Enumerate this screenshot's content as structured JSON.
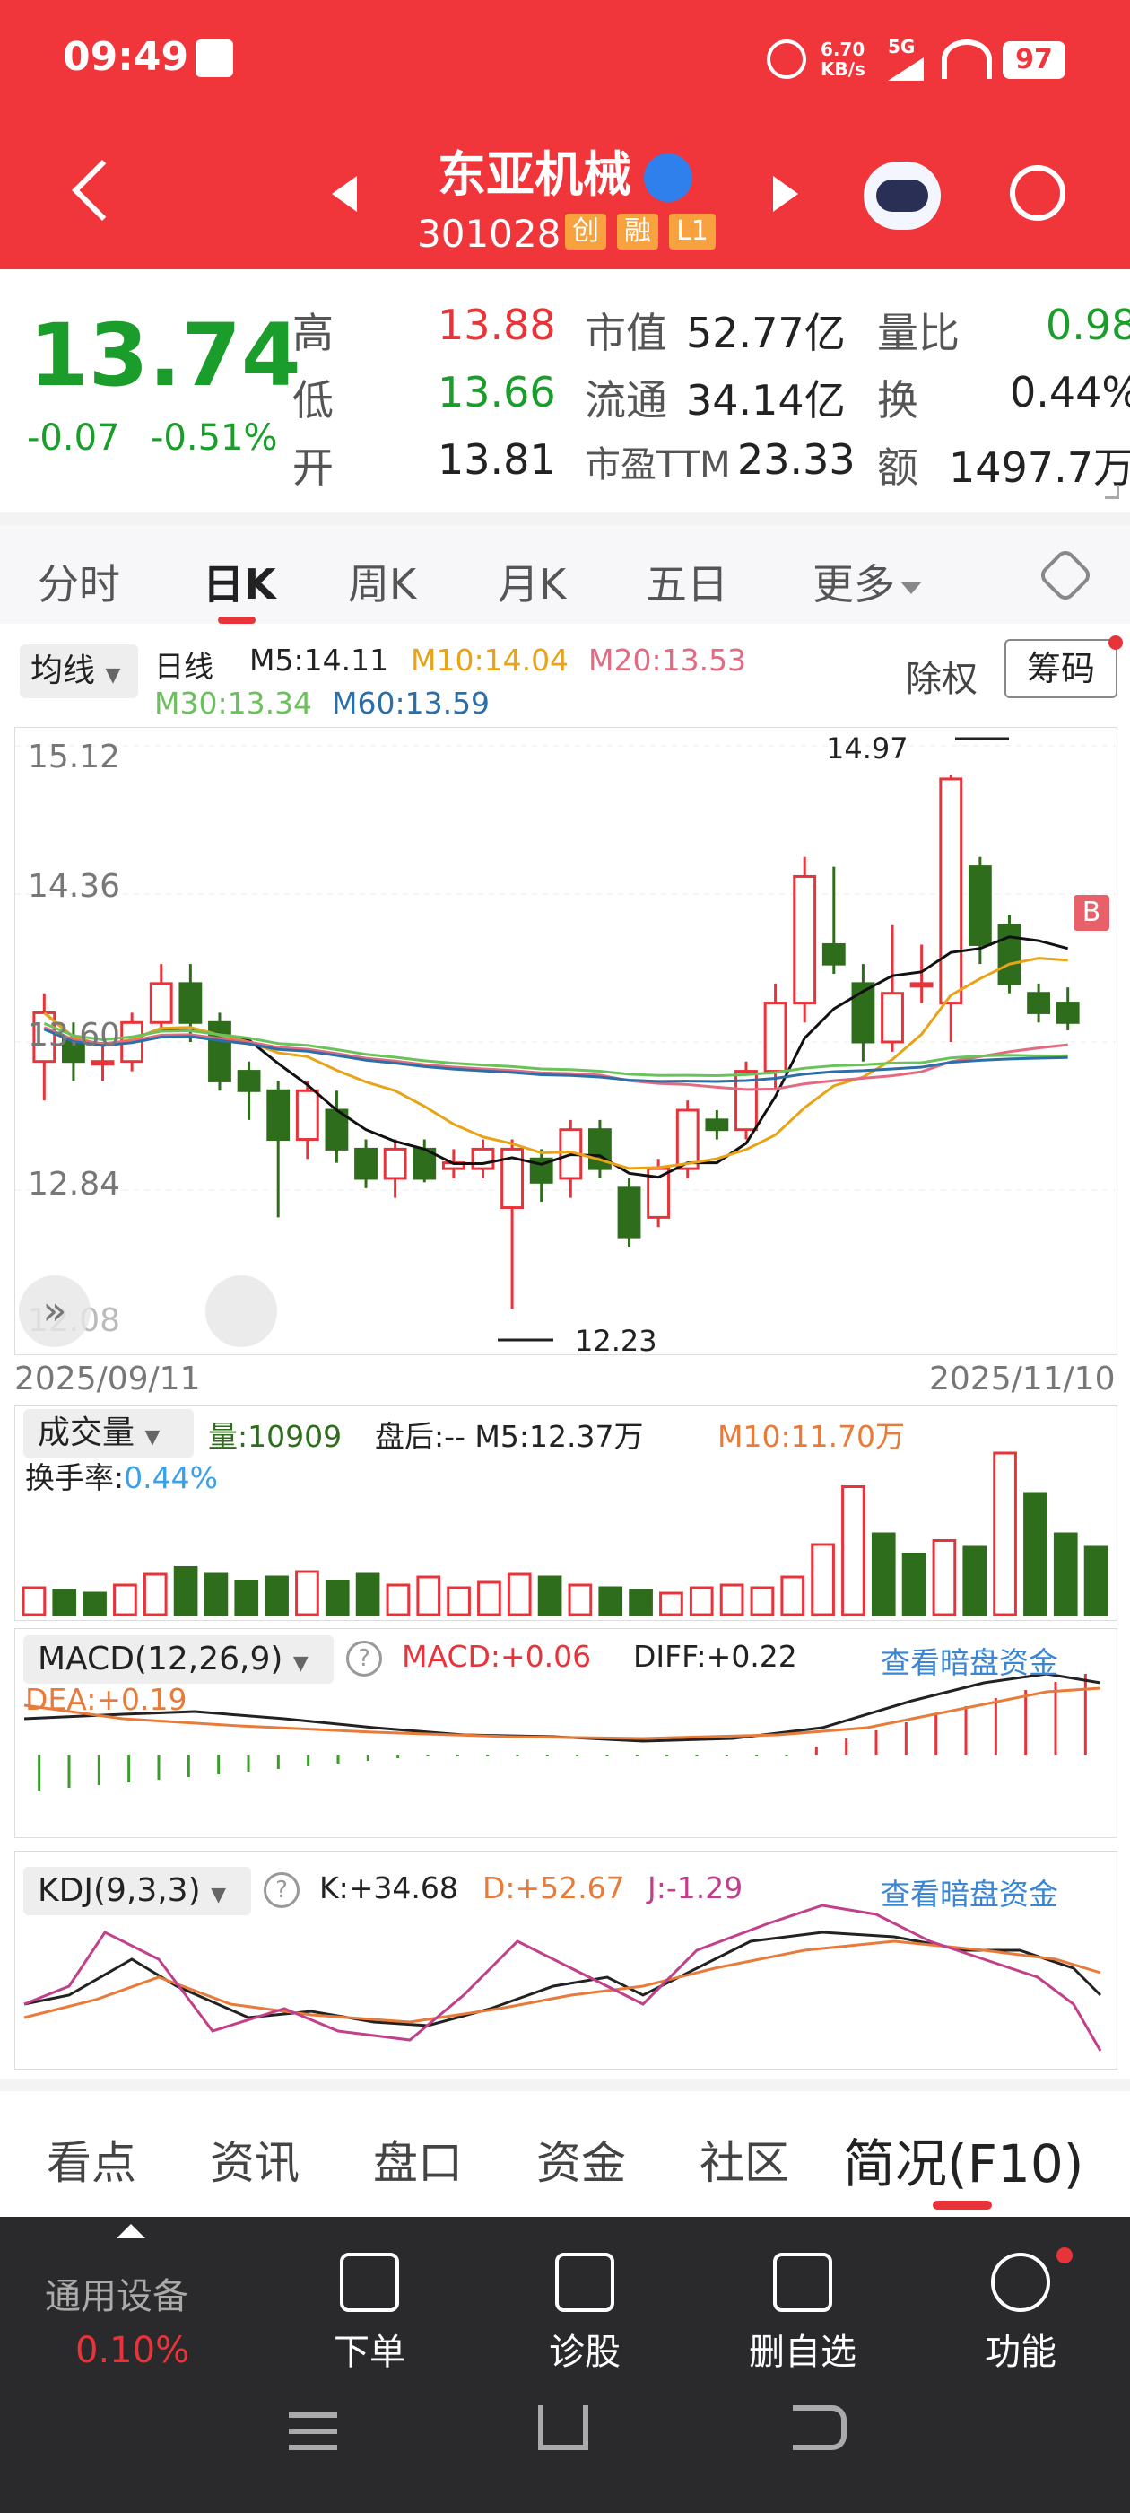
{
  "status_bar": {
    "time": "09:49",
    "speed_top": "6.70",
    "speed_bottom": "KB/s",
    "net": "5G",
    "battery": "97"
  },
  "header": {
    "title": "东亚机械",
    "code": "301028",
    "tags": [
      "创",
      "融",
      "L1"
    ]
  },
  "quote": {
    "price": "13.74",
    "change": "-0.07",
    "change_pct": "-0.51%",
    "high_label": "高",
    "high": "13.88",
    "low_label": "低",
    "low": "13.66",
    "open_label": "开",
    "open": "13.81",
    "mcap_label": "市值",
    "mcap": "52.77亿",
    "float_label": "流通",
    "float": "34.14亿",
    "pe_label": "市盈TTM",
    "pe": "23.33",
    "vr_label": "量比",
    "vr": "0.98",
    "turn_label": "换",
    "turn": "0.44%",
    "amt_label": "额",
    "amt": "1497.7万"
  },
  "tabs": [
    "分时",
    "日K",
    "周K",
    "月K",
    "五日",
    "更多"
  ],
  "kline_legend": {
    "ma_select": "均线",
    "period": "日线",
    "m5": "M5:14.11",
    "m10": "M10:14.04",
    "m20": "M20:13.53",
    "m30": "M30:13.34",
    "m60": "M60:13.59",
    "ex_right": "除权",
    "chips": "筹码"
  },
  "kline_axis": {
    "y_labels": [
      "15.12",
      "14.36",
      "13.60",
      "12.84",
      "12.08"
    ],
    "date_start": "2025/09/11",
    "date_end": "2025/11/10",
    "high_mark": "14.97",
    "low_mark": "12.23",
    "badge": "B"
  },
  "volume_legend": {
    "select": "成交量",
    "vol": "量:10909",
    "after": "盘后:-- M5:12.37万",
    "m10": "M10:11.70万",
    "turn_label": "换手率:",
    "turn": "0.44%"
  },
  "macd_legend": {
    "select": "MACD(12,26,9)",
    "macd": "MACD:+0.06",
    "diff": "DIFF:+0.22",
    "dea": "DEA:+0.19",
    "link": "查看暗盘资金"
  },
  "kdj_legend": {
    "select": "KDJ(9,3,3)",
    "k": "K:+34.68",
    "d": "D:+52.67",
    "j": "J:-1.29",
    "link": "查看暗盘资金"
  },
  "bottom_tabs": [
    "看点",
    "资讯",
    "盘口",
    "资金",
    "社区",
    "简况(F10)"
  ],
  "dock": {
    "sector": "通用设备",
    "sector_pct": "0.10%",
    "items": [
      "下单",
      "诊股",
      "删自选",
      "功能"
    ]
  },
  "colors": {
    "header_red": "#f0353b",
    "up": "#e8333a",
    "down": "#2e6d1b",
    "ma5": "#111111",
    "ma10": "#e8a317",
    "ma20": "#e26b82",
    "ma30": "#6ac25a",
    "ma60": "#2c6ea8"
  }
}
